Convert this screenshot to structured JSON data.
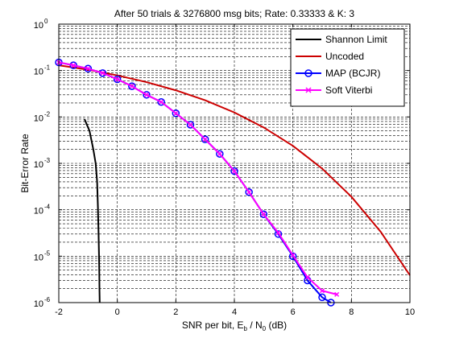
{
  "chart_data": {
    "type": "line",
    "title": "After 50 trials & 3276800 msg bits; Rate: 0.33333 & K: 3",
    "xlabel": {
      "main": "SNR per bit, E",
      "sub1": "b",
      "mid": " / N",
      "sub2": "0",
      "end": " (dB)"
    },
    "ylabel": "Bit-Error Rate",
    "xlim": [
      -2,
      10
    ],
    "ylim": [
      1e-06,
      1
    ],
    "yscale": "log",
    "grid": "dashed-minor-and-major",
    "legend_position": "top-right",
    "x_ticks": [
      -2,
      0,
      2,
      4,
      6,
      8,
      10
    ],
    "x_tick_labels": [
      "-2",
      "0",
      "2",
      "4",
      "6",
      "8",
      "10"
    ],
    "y_ticks": [
      0,
      -1,
      -2,
      -3,
      -4,
      -5,
      -6
    ],
    "y_tick_base": "10",
    "y_tick_exponents": [
      "0",
      "-1",
      "-2",
      "-3",
      "-4",
      "-5",
      "-6"
    ],
    "series": [
      {
        "name": "Shannon Limit",
        "color": "#000000",
        "marker": "none",
        "x": [
          -1.12,
          -0.95,
          -0.82,
          -0.74,
          -0.69,
          -0.66,
          -0.64,
          -0.625,
          -0.615,
          -0.61,
          -0.605,
          -0.602
        ],
        "y": [
          0.009,
          0.005,
          0.002,
          0.001,
          0.0004,
          0.0001,
          3e-05,
          1e-05,
          4e-06,
          2e-06,
          1.3e-06,
          1e-06
        ]
      },
      {
        "name": "Uncoded",
        "color": "#cc0000",
        "marker": "none",
        "x": [
          -2,
          -1,
          0,
          1,
          2,
          3,
          4,
          5,
          6,
          7,
          8,
          9,
          10
        ],
        "y": [
          0.13,
          0.104,
          0.0786,
          0.0563,
          0.0375,
          0.0229,
          0.0125,
          0.00595,
          0.00239,
          0.000773,
          0.000191,
          3.36e-05,
          3.87e-06
        ]
      },
      {
        "name": "MAP (BCJR)",
        "color": "#0000ff",
        "marker": "circle",
        "x": [
          -2,
          -1.5,
          -1,
          -0.5,
          0,
          0.5,
          1,
          1.5,
          2,
          2.5,
          3,
          3.5,
          4,
          4.5,
          5,
          5.5,
          6,
          6.5,
          7,
          7.3
        ],
        "y": [
          0.15,
          0.13,
          0.11,
          0.088,
          0.065,
          0.046,
          0.03,
          0.021,
          0.012,
          0.0068,
          0.0033,
          0.0016,
          0.00068,
          0.00024,
          8e-05,
          3e-05,
          1e-05,
          3e-06,
          1.3e-06,
          1e-06
        ]
      },
      {
        "name": "Soft Viterbi",
        "color": "#ff00ff",
        "marker": "x",
        "x": [
          -2,
          -1.5,
          -1,
          -0.5,
          0,
          0.5,
          1,
          1.5,
          2,
          2.5,
          3,
          3.5,
          4,
          4.5,
          5,
          5.5,
          6,
          6.5,
          7,
          7.5
        ],
        "y": [
          0.15,
          0.13,
          0.11,
          0.088,
          0.065,
          0.046,
          0.03,
          0.021,
          0.012,
          0.0068,
          0.0033,
          0.0016,
          0.00068,
          0.00024,
          8e-05,
          3.2e-05,
          1.05e-05,
          3.5e-06,
          1.8e-06,
          1.5e-06
        ]
      }
    ]
  }
}
